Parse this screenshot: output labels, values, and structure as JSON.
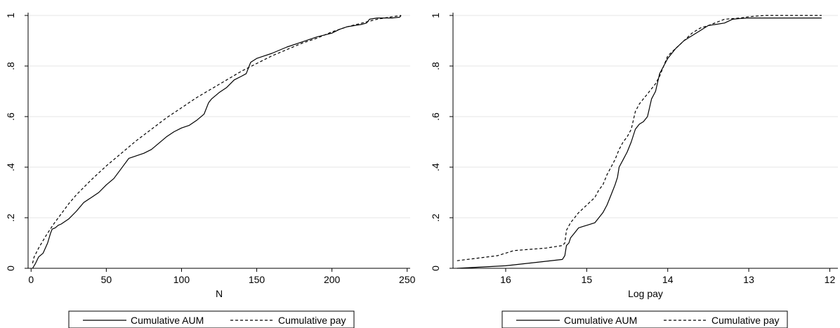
{
  "chart_data": [
    {
      "type": "line",
      "title": "",
      "xlabel": "N",
      "ylabel": "",
      "xlim": [
        -2,
        252
      ],
      "ylim": [
        0,
        1
      ],
      "x_reversed": false,
      "xticks": [
        0,
        50,
        100,
        150,
        200,
        250
      ],
      "xtick_labels": [
        "0",
        "50",
        "100",
        "150",
        "200",
        "250"
      ],
      "yticks": [
        0,
        0.2,
        0.4,
        0.6,
        0.8,
        1
      ],
      "ytick_labels": [
        "0",
        ".2",
        ".4",
        ".6",
        ".8",
        "1"
      ],
      "grid": true,
      "legend_position": "bottom",
      "series": [
        {
          "name": "Cumulative AUM",
          "style": "solid",
          "x": [
            1,
            3,
            5,
            8,
            11,
            13,
            14,
            16,
            18,
            20,
            25,
            30,
            35,
            40,
            45,
            50,
            55,
            60,
            65,
            70,
            75,
            80,
            85,
            90,
            95,
            100,
            105,
            110,
            115,
            118,
            120,
            125,
            130,
            135,
            140,
            143,
            145,
            146,
            150,
            155,
            160,
            170,
            180,
            190,
            200,
            205,
            210,
            215,
            220,
            223,
            225,
            230,
            240,
            245,
            246
          ],
          "y": [
            0,
            0.02,
            0.045,
            0.06,
            0.1,
            0.14,
            0.155,
            0.16,
            0.17,
            0.175,
            0.195,
            0.225,
            0.26,
            0.28,
            0.3,
            0.33,
            0.355,
            0.395,
            0.435,
            0.445,
            0.455,
            0.47,
            0.495,
            0.52,
            0.54,
            0.555,
            0.565,
            0.585,
            0.61,
            0.655,
            0.67,
            0.695,
            0.715,
            0.745,
            0.76,
            0.77,
            0.8,
            0.815,
            0.83,
            0.84,
            0.85,
            0.875,
            0.895,
            0.915,
            0.93,
            0.945,
            0.955,
            0.96,
            0.965,
            0.97,
            0.985,
            0.99,
            0.99,
            0.993,
            1
          ]
        },
        {
          "name": "Cumulative pay",
          "style": "dashed",
          "x": [
            1,
            2,
            5,
            10,
            15,
            20,
            25,
            30,
            40,
            50,
            60,
            70,
            80,
            90,
            100,
            110,
            120,
            130,
            140,
            150,
            160,
            170,
            180,
            190,
            200,
            210,
            220,
            230,
            240,
            246
          ],
          "y": [
            0.02,
            0.045,
            0.08,
            0.13,
            0.175,
            0.215,
            0.255,
            0.29,
            0.35,
            0.405,
            0.455,
            0.505,
            0.55,
            0.595,
            0.635,
            0.675,
            0.71,
            0.745,
            0.78,
            0.81,
            0.84,
            0.865,
            0.89,
            0.91,
            0.935,
            0.955,
            0.97,
            0.985,
            0.995,
            1
          ]
        }
      ]
    },
    {
      "type": "line",
      "title": "",
      "xlabel": "Log pay",
      "ylabel": "",
      "xlim": [
        16.65,
        11.9
      ],
      "ylim": [
        0,
        1
      ],
      "x_reversed": true,
      "xticks": [
        16,
        15,
        14,
        13,
        12
      ],
      "xtick_labels": [
        "16",
        "15",
        "14",
        "13",
        "12"
      ],
      "yticks": [
        0,
        0.2,
        0.4,
        0.6,
        0.8,
        1
      ],
      "ytick_labels": [
        "0",
        ".2",
        ".4",
        ".6",
        ".8",
        "1"
      ],
      "grid": true,
      "legend_position": "bottom",
      "series": [
        {
          "name": "Cumulative AUM",
          "style": "solid",
          "x": [
            16.6,
            16.0,
            15.3,
            15.27,
            15.25,
            15.22,
            15.2,
            15.15,
            15.1,
            15.05,
            15.0,
            14.9,
            14.8,
            14.75,
            14.7,
            14.65,
            14.62,
            14.6,
            14.55,
            14.5,
            14.45,
            14.4,
            14.35,
            14.3,
            14.25,
            14.2,
            14.15,
            14.1,
            14.05,
            14.0,
            13.9,
            13.8,
            13.7,
            13.6,
            13.5,
            13.4,
            13.3,
            13.2,
            13.1,
            13.0,
            12.8,
            12.5,
            12.1
          ],
          "y": [
            0,
            0.01,
            0.035,
            0.05,
            0.09,
            0.1,
            0.12,
            0.14,
            0.16,
            0.165,
            0.17,
            0.18,
            0.22,
            0.25,
            0.29,
            0.33,
            0.36,
            0.4,
            0.43,
            0.46,
            0.5,
            0.55,
            0.57,
            0.58,
            0.6,
            0.67,
            0.7,
            0.77,
            0.8,
            0.83,
            0.87,
            0.9,
            0.92,
            0.94,
            0.96,
            0.965,
            0.97,
            0.985,
            0.988,
            0.99,
            0.99,
            0.99,
            0.99
          ]
        },
        {
          "name": "Cumulative pay",
          "style": "dashed",
          "x": [
            16.6,
            16.1,
            16.0,
            15.9,
            15.5,
            15.3,
            15.27,
            15.25,
            15.2,
            15.15,
            15.1,
            15.0,
            14.9,
            14.85,
            14.8,
            14.75,
            14.7,
            14.65,
            14.6,
            14.55,
            14.5,
            14.45,
            14.4,
            14.35,
            14.3,
            14.25,
            14.2,
            14.15,
            14.1,
            14.05,
            14.0,
            13.9,
            13.8,
            13.7,
            13.6,
            13.5,
            13.3,
            13.1,
            13.0,
            12.8,
            12.1
          ],
          "y": [
            0.03,
            0.05,
            0.06,
            0.07,
            0.08,
            0.09,
            0.1,
            0.15,
            0.18,
            0.2,
            0.22,
            0.25,
            0.28,
            0.31,
            0.33,
            0.37,
            0.4,
            0.43,
            0.47,
            0.5,
            0.52,
            0.55,
            0.62,
            0.65,
            0.67,
            0.69,
            0.71,
            0.73,
            0.76,
            0.8,
            0.84,
            0.87,
            0.9,
            0.93,
            0.95,
            0.96,
            0.985,
            0.99,
            0.995,
            1,
            1
          ]
        }
      ]
    }
  ]
}
